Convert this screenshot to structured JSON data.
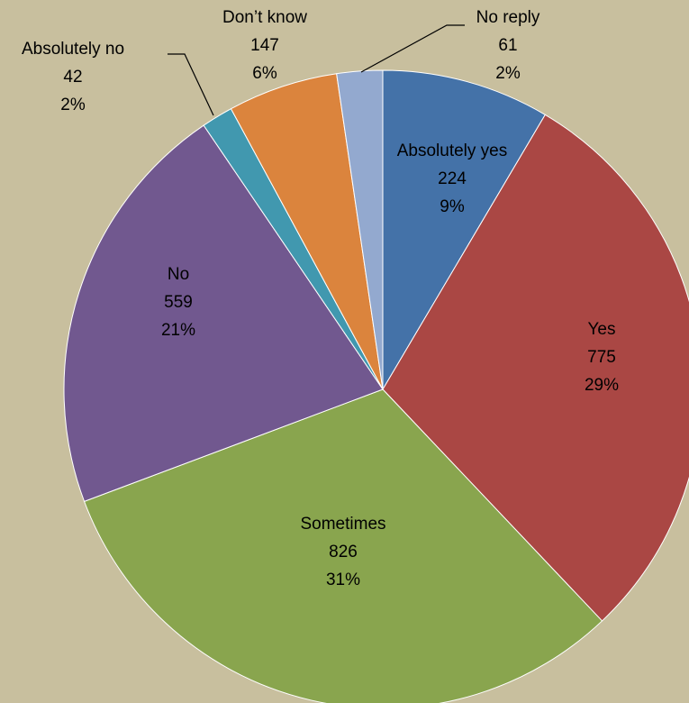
{
  "chart_data": {
    "type": "pie",
    "title": "",
    "start": "12 o'clock, clockwise",
    "slices": [
      {
        "category": "Absolutely yes",
        "value": 224,
        "percent": "9%",
        "color": "#4472a8"
      },
      {
        "category": "Yes",
        "value": 775,
        "percent": "29%",
        "color": "#aa4744"
      },
      {
        "category": "Sometimes",
        "value": 826,
        "percent": "31%",
        "color": "#89a54e"
      },
      {
        "category": "No",
        "value": 559,
        "percent": "21%",
        "color": "#71588f"
      },
      {
        "category": "Absolutely  no",
        "value": 42,
        "percent": "2%",
        "color": "#4198af"
      },
      {
        "category": "Don’t know",
        "value": 147,
        "percent": "6%",
        "color": "#db843d"
      },
      {
        "category": "No reply",
        "value": 61,
        "percent": "2%",
        "color": "#93a9cf"
      }
    ]
  }
}
